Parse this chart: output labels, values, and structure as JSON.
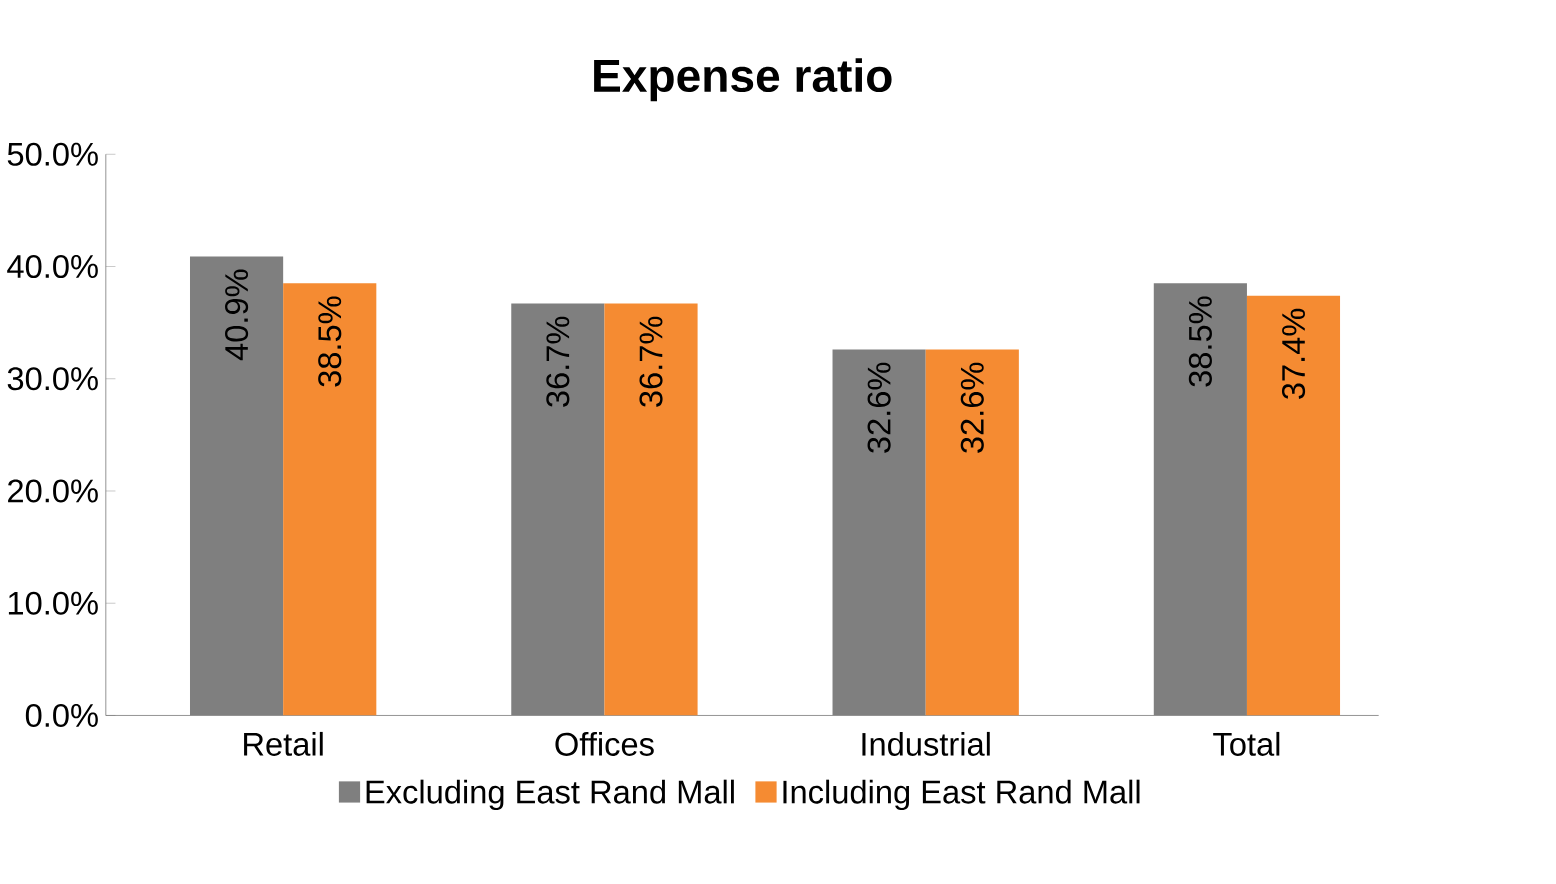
{
  "chart_data": {
    "type": "bar",
    "title": "Expense ratio",
    "categories": [
      "Retail",
      "Offices",
      "Industrial",
      "Total"
    ],
    "series": [
      {
        "name": "Excluding East Rand Mall",
        "color": "#7f7f7f",
        "values": [
          40.9,
          36.7,
          32.6,
          38.5
        ],
        "value_labels": [
          "40.9%",
          "36.7%",
          "32.6%",
          "38.5%"
        ]
      },
      {
        "name": "Including East Rand Mall",
        "color": "#f58b32",
        "values": [
          38.5,
          36.7,
          32.6,
          37.4
        ],
        "value_labels": [
          "38.5%",
          "36.7%",
          "32.6%",
          "37.4%"
        ]
      }
    ],
    "ylim": [
      0,
      50
    ],
    "yticks": [
      {
        "value": 0,
        "label": "0.0%"
      },
      {
        "value": 10,
        "label": "10.0%"
      },
      {
        "value": 20,
        "label": "20.0%"
      },
      {
        "value": 30,
        "label": "30.0%"
      },
      {
        "value": 40,
        "label": "40.0%"
      },
      {
        "value": 50,
        "label": "50.0%"
      }
    ],
    "grid": false,
    "legend": "bottom"
  }
}
